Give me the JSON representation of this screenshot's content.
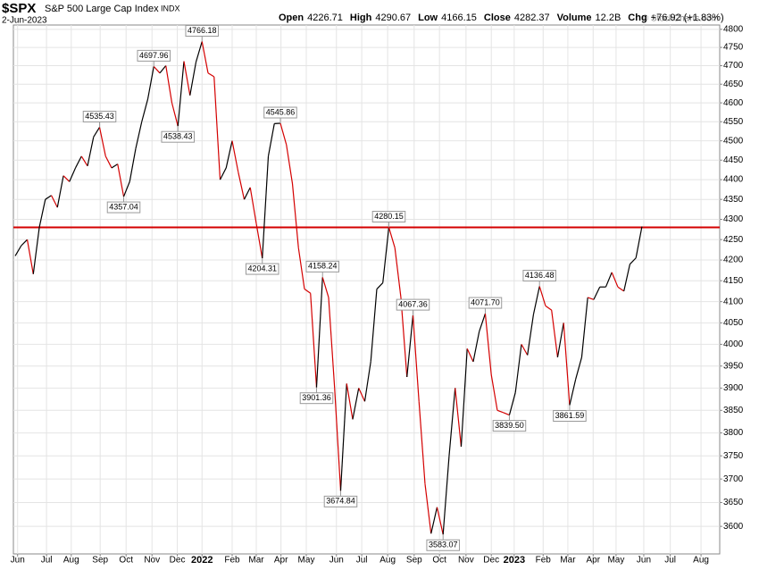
{
  "chart_data": {
    "type": "line",
    "symbol": "$SPX",
    "name": "S&P 500 Large Cap Index",
    "exchange": "INDX",
    "date": "2-Jun-2023",
    "watermark": "© StockCharts.com",
    "quote": [
      {
        "label": "Open",
        "value": "4226.71"
      },
      {
        "label": "High",
        "value": "4290.67"
      },
      {
        "label": "Low",
        "value": "4166.15"
      },
      {
        "label": "Close",
        "value": "4282.37"
      },
      {
        "label": "Volume",
        "value": "12.2B"
      },
      {
        "label": "Chg",
        "value": "+76.92 (+1.83%)"
      }
    ],
    "log_scale": true,
    "grid": true,
    "up_color": "#000000",
    "down_color": "#d40000",
    "x": [
      0,
      1,
      2,
      3,
      4,
      5,
      6,
      7,
      8,
      9,
      10,
      11,
      12,
      13,
      14,
      15,
      16,
      17,
      18,
      19,
      20,
      21,
      22,
      23,
      24,
      25,
      26,
      27,
      28,
      29,
      30,
      31,
      32,
      33,
      34,
      35,
      36,
      37,
      38,
      39,
      40,
      41,
      42,
      43,
      44,
      45,
      46,
      47,
      48,
      49,
      50,
      51,
      52,
      53,
      54,
      55,
      56,
      57,
      58,
      59,
      60,
      61,
      62,
      63,
      64,
      65,
      66,
      67,
      68,
      69,
      70,
      71,
      72,
      73,
      74,
      75,
      76,
      77,
      78,
      79,
      80,
      81,
      82,
      83,
      84,
      85,
      86,
      87,
      88,
      89,
      90,
      91,
      92,
      93,
      94,
      95,
      96,
      97,
      98,
      99,
      100,
      101,
      102,
      103,
      104
    ],
    "values": [
      4210,
      4235,
      4250,
      4166,
      4280,
      4350,
      4360,
      4330,
      4410,
      4395,
      4430,
      4460,
      4435,
      4510,
      4535.43,
      4460,
      4430,
      4440,
      4357.04,
      4395,
      4480,
      4550,
      4610,
      4697.96,
      4680,
      4700,
      4600,
      4538.43,
      4712,
      4620,
      4710,
      4766.18,
      4680,
      4670,
      4400,
      4430,
      4500,
      4420,
      4350,
      4380,
      4290,
      4204.31,
      4460,
      4545,
      4545.86,
      4490,
      4390,
      4230,
      4130,
      4120,
      3901.36,
      4158.24,
      4110,
      3900,
      3674.84,
      3910,
      3830,
      3900,
      3870,
      3960,
      4130,
      4145,
      4280.15,
      4230,
      4110,
      3925,
      4067.36,
      3870,
      3690,
      3585,
      3640,
      3583.07,
      3750,
      3900,
      3770,
      3990,
      3960,
      4030,
      4071.7,
      3930,
      3850,
      3845,
      3839.5,
      3890,
      4000,
      3975,
      4070,
      4136.48,
      4090,
      4080,
      3970,
      4050,
      3861.59,
      3920,
      3970,
      4110,
      4105,
      4135,
      4135,
      4170,
      4135,
      4125,
      4190,
      4205,
      4282.37
    ],
    "annotations": [
      {
        "x": 14,
        "y": 4535.43
      },
      {
        "x": 18,
        "y": 4357.04
      },
      {
        "x": 23,
        "y": 4697.96
      },
      {
        "x": 27,
        "y": 4538.43
      },
      {
        "x": 31,
        "y": 4766.18
      },
      {
        "x": 41,
        "y": 4204.31
      },
      {
        "x": 44,
        "y": 4545.86
      },
      {
        "x": 50,
        "y": 3901.36
      },
      {
        "x": 51,
        "y": 4158.24
      },
      {
        "x": 54,
        "y": 3674.84
      },
      {
        "x": 62,
        "y": 4280.15
      },
      {
        "x": 66,
        "y": 4067.36
      },
      {
        "x": 71,
        "y": 3583.07
      },
      {
        "x": 78,
        "y": 4071.7,
        "label": "4071.70"
      },
      {
        "x": 82,
        "y": 3839.5,
        "label": "3839.50"
      },
      {
        "x": 87,
        "y": 4136.48
      },
      {
        "x": 92,
        "y": 3861.59
      }
    ],
    "hline": {
      "value": 4280.15,
      "color": "#d40000"
    },
    "xlim": [
      -0.3,
      116.9
    ],
    "xticks": [
      {
        "value": 0.4,
        "label": "Jun"
      },
      {
        "value": 5.2,
        "label": "Jul"
      },
      {
        "value": 9.3,
        "label": "Aug"
      },
      {
        "value": 14.1,
        "label": "Sep"
      },
      {
        "value": 18.4,
        "label": "Oct"
      },
      {
        "value": 22.7,
        "label": "Nov"
      },
      {
        "value": 26.9,
        "label": "Dec"
      },
      {
        "value": 31,
        "label": "2022"
      },
      {
        "value": 36,
        "label": "Feb"
      },
      {
        "value": 40,
        "label": "Mar"
      },
      {
        "value": 44.1,
        "label": "Apr"
      },
      {
        "value": 48.3,
        "label": "May"
      },
      {
        "value": 53.3,
        "label": "Jun"
      },
      {
        "value": 57.5,
        "label": "Jul"
      },
      {
        "value": 61.8,
        "label": "Aug"
      },
      {
        "value": 66.2,
        "label": "Sep"
      },
      {
        "value": 70.4,
        "label": "Oct"
      },
      {
        "value": 74.8,
        "label": "Nov"
      },
      {
        "value": 79,
        "label": "Dec"
      },
      {
        "value": 82.8,
        "label": "2023"
      },
      {
        "value": 87.6,
        "label": "Feb"
      },
      {
        "value": 91.7,
        "label": "Mar"
      },
      {
        "value": 95.9,
        "label": "Apr"
      },
      {
        "value": 99.7,
        "label": "May"
      },
      {
        "value": 104.3,
        "label": "Jun"
      },
      {
        "value": 108.7,
        "label": "Jul"
      },
      {
        "value": 113.8,
        "label": "Aug"
      }
    ],
    "ylim": [
      3543,
      4812
    ],
    "yticks": [
      3600,
      3650,
      3700,
      3750,
      3800,
      3850,
      3900,
      3950,
      4000,
      4050,
      4100,
      4150,
      4200,
      4250,
      4300,
      4350,
      4400,
      4450,
      4500,
      4550,
      4600,
      4650,
      4700,
      4750,
      4800
    ]
  }
}
